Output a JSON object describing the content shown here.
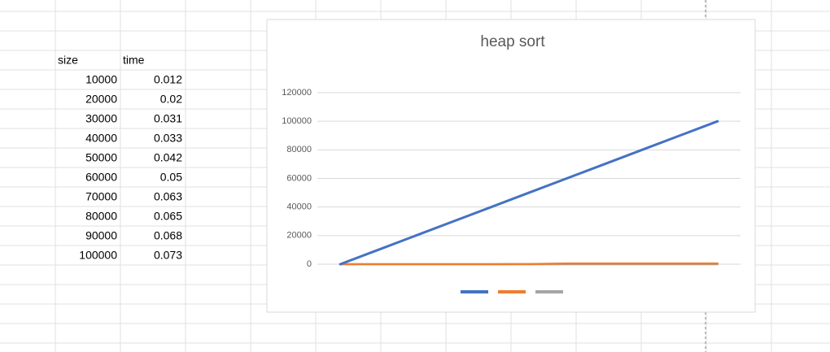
{
  "table": {
    "header": [
      "size",
      "time"
    ],
    "rows": [
      [
        10000,
        0.012
      ],
      [
        20000,
        0.02
      ],
      [
        30000,
        0.031
      ],
      [
        40000,
        0.033
      ],
      [
        50000,
        0.042
      ],
      [
        60000,
        0.05
      ],
      [
        70000,
        0.063
      ],
      [
        80000,
        0.065
      ],
      [
        90000,
        0.068
      ],
      [
        100000,
        0.073
      ]
    ]
  },
  "chart_data": {
    "type": "line",
    "title": "heap sort",
    "categories": [
      null,
      null,
      null,
      null,
      null,
      null,
      null,
      null,
      null,
      null,
      null
    ],
    "series": [
      {
        "color": "#4472c4",
        "values": [
          0,
          10000,
          20000,
          30000,
          40000,
          50000,
          60000,
          70000,
          80000,
          90000,
          100000
        ]
      },
      {
        "color": "#ed7d31",
        "values": [
          0,
          0,
          0,
          0,
          0,
          100,
          500,
          500,
          500,
          500,
          500
        ]
      },
      {
        "color": "#a5a5a5",
        "values": [
          0,
          0,
          0,
          0,
          0,
          0,
          0,
          0,
          0,
          0,
          0
        ]
      }
    ],
    "ylim": [
      0,
      120000
    ],
    "yticks": [
      0,
      20000,
      40000,
      60000,
      80000,
      100000,
      120000
    ],
    "grid": true,
    "legend": "bottom"
  }
}
